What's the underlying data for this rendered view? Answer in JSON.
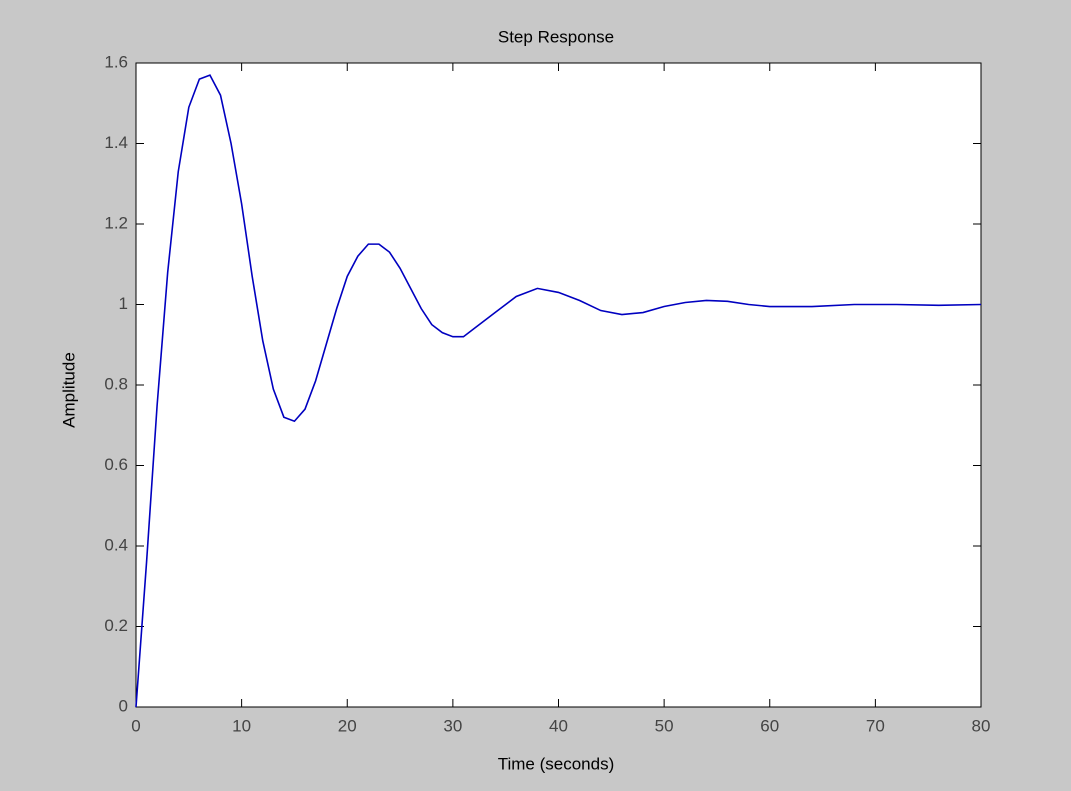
{
  "chart_data": {
    "type": "line",
    "title": "Step Response",
    "x_label": "Time (seconds)",
    "y_label": "Amplitude",
    "x": [
      0,
      1,
      2,
      3,
      4,
      5,
      6,
      7,
      8,
      9,
      10,
      11,
      12,
      13,
      14,
      15,
      16,
      17,
      18,
      19,
      20,
      21,
      22,
      23,
      24,
      25,
      26,
      27,
      28,
      29,
      30,
      31,
      32,
      34,
      36,
      38,
      40,
      42,
      44,
      46,
      48,
      50,
      52,
      54,
      56,
      58,
      60,
      64,
      68,
      72,
      76,
      80
    ],
    "series": [
      {
        "color": "#0000c0",
        "values": [
          0,
          0.36,
          0.75,
          1.08,
          1.33,
          1.49,
          1.56,
          1.57,
          1.52,
          1.4,
          1.25,
          1.07,
          0.91,
          0.79,
          0.72,
          0.71,
          0.74,
          0.81,
          0.9,
          0.99,
          1.07,
          1.12,
          1.15,
          1.15,
          1.13,
          1.09,
          1.04,
          0.99,
          0.95,
          0.93,
          0.92,
          0.92,
          0.94,
          0.98,
          1.02,
          1.04,
          1.03,
          1.01,
          0.985,
          0.975,
          0.98,
          0.995,
          1.005,
          1.01,
          1.008,
          1,
          0.995,
          0.995,
          1,
          1,
          0.998,
          1
        ]
      }
    ],
    "xlim": [
      0,
      80
    ],
    "ylim": [
      0,
      1.6
    ],
    "xticks": [
      0,
      10,
      20,
      30,
      40,
      50,
      60,
      70,
      80
    ],
    "yticks": [
      0,
      0.2,
      0.4,
      0.6,
      0.8,
      1,
      1.2,
      1.4,
      1.6
    ]
  }
}
